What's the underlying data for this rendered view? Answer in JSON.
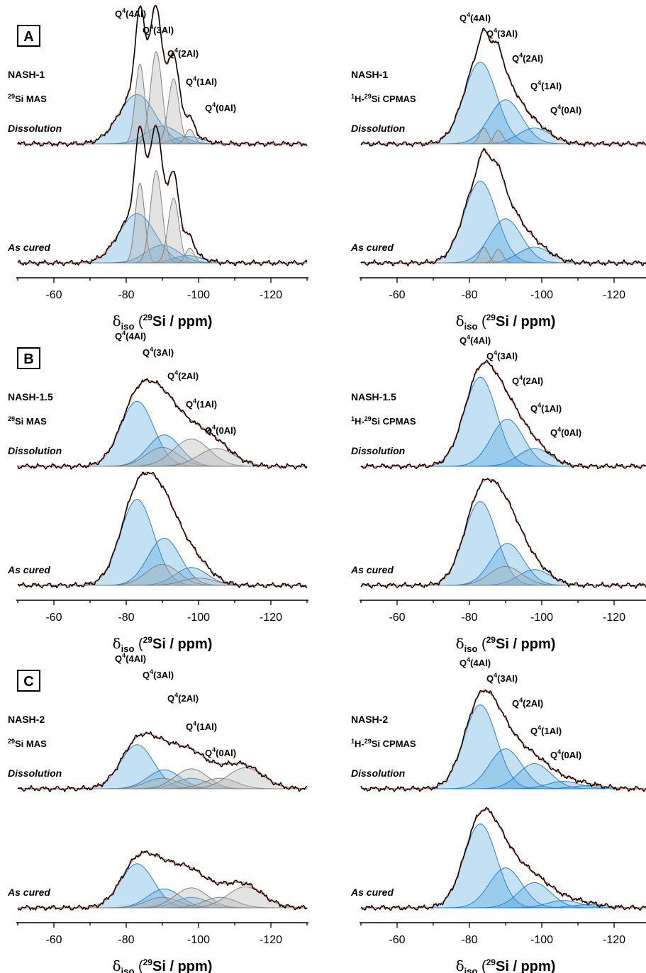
{
  "chart_data": {
    "type": "line",
    "xlabel": "δiso (29Si / ppm)",
    "xlabel_parts": {
      "delta": "δ",
      "iso": "iso",
      "open": " (",
      "mass": "29",
      "rest": "Si / ppm)"
    },
    "xlim": [
      -50,
      -130
    ],
    "xticks": [
      -60,
      -80,
      -100,
      -120
    ],
    "xtick_labels": [
      "-60",
      "-80",
      "-100",
      "-120"
    ],
    "peak_labels": [
      "Q4(4Al)",
      "Q4(3Al)",
      "Q4(2Al)",
      "Q4(1Al)",
      "Q4(0Al)"
    ],
    "colors": {
      "experimental": "#000000",
      "fit": "#f07a62",
      "component_blue": "#3d9ad9",
      "component_gray": "#b6b6b6"
    },
    "panels": [
      {
        "label": "A",
        "sample": "NASH-1",
        "columns": [
          {
            "method": "29Si MAS",
            "method_parts": {
              "mass": "29",
              "text": "Si MAS"
            },
            "spectra": [
              {
                "condition": "Dissolution",
                "components": [
                  {
                    "center": -83,
                    "height": 0.47,
                    "width": 5.0,
                    "kind": "blue"
                  },
                  {
                    "center": -90,
                    "height": 0.17,
                    "width": 4.5,
                    "kind": "blue"
                  },
                  {
                    "center": -97,
                    "height": 0.07,
                    "width": 4.0,
                    "kind": "blue"
                  },
                  {
                    "center": -83.8,
                    "height": 0.76,
                    "width": 1.3,
                    "kind": "gray"
                  },
                  {
                    "center": -88.3,
                    "height": 0.88,
                    "width": 1.6,
                    "kind": "gray"
                  },
                  {
                    "center": -93.1,
                    "height": 0.62,
                    "width": 1.5,
                    "kind": "gray"
                  },
                  {
                    "center": -97.6,
                    "height": 0.14,
                    "width": 1.2,
                    "kind": "gray"
                  }
                ]
              },
              {
                "condition": "As cured",
                "components": [
                  {
                    "center": -83,
                    "height": 0.47,
                    "width": 5.0,
                    "kind": "blue"
                  },
                  {
                    "center": -90,
                    "height": 0.17,
                    "width": 4.5,
                    "kind": "blue"
                  },
                  {
                    "center": -97,
                    "height": 0.07,
                    "width": 4.0,
                    "kind": "blue"
                  },
                  {
                    "center": -83.8,
                    "height": 0.76,
                    "width": 1.3,
                    "kind": "gray"
                  },
                  {
                    "center": -88.3,
                    "height": 0.88,
                    "width": 1.6,
                    "kind": "gray"
                  },
                  {
                    "center": -93.1,
                    "height": 0.62,
                    "width": 1.5,
                    "kind": "gray"
                  },
                  {
                    "center": -97.6,
                    "height": 0.14,
                    "width": 1.2,
                    "kind": "gray"
                  }
                ]
              }
            ]
          },
          {
            "method": "1H-29Si CPMAS",
            "method_parts": {
              "mass1": "1",
              "mid": "H-",
              "mass2": "29",
              "text": "Si CPMAS"
            },
            "spectra": [
              {
                "condition": "Dissolution",
                "components": [
                  {
                    "center": -83,
                    "height": 0.78,
                    "width": 4.5,
                    "kind": "blue"
                  },
                  {
                    "center": -90,
                    "height": 0.42,
                    "width": 4.5,
                    "kind": "blue"
                  },
                  {
                    "center": -98,
                    "height": 0.15,
                    "width": 4.5,
                    "kind": "blue"
                  },
                  {
                    "center": -84,
                    "height": 0.15,
                    "width": 1.2,
                    "kind": "gray"
                  },
                  {
                    "center": -88,
                    "height": 0.13,
                    "width": 1.2,
                    "kind": "gray"
                  }
                ]
              },
              {
                "condition": "As cured",
                "components": [
                  {
                    "center": -83,
                    "height": 0.78,
                    "width": 4.5,
                    "kind": "blue"
                  },
                  {
                    "center": -90,
                    "height": 0.42,
                    "width": 4.5,
                    "kind": "blue"
                  },
                  {
                    "center": -98,
                    "height": 0.15,
                    "width": 4.5,
                    "kind": "blue"
                  },
                  {
                    "center": -84,
                    "height": 0.15,
                    "width": 1.2,
                    "kind": "gray"
                  },
                  {
                    "center": -88,
                    "height": 0.13,
                    "width": 1.2,
                    "kind": "gray"
                  }
                ]
              }
            ]
          }
        ]
      },
      {
        "label": "B",
        "sample": "NASH-1.5",
        "columns": [
          {
            "method": "29Si MAS",
            "method_parts": {
              "mass": "29",
              "text": "Si MAS"
            },
            "spectra": [
              {
                "condition": "Dissolution",
                "components": [
                  {
                    "center": -83,
                    "height": 0.62,
                    "width": 4.6,
                    "kind": "blue"
                  },
                  {
                    "center": -90.5,
                    "height": 0.3,
                    "width": 4.5,
                    "kind": "blue"
                  },
                  {
                    "center": -90,
                    "height": 0.18,
                    "width": 4.5,
                    "kind": "gray"
                  },
                  {
                    "center": -98,
                    "height": 0.26,
                    "width": 5.0,
                    "kind": "gray"
                  },
                  {
                    "center": -105,
                    "height": 0.17,
                    "width": 5.0,
                    "kind": "gray"
                  }
                ]
              },
              {
                "condition": "As cured",
                "components": [
                  {
                    "center": -83,
                    "height": 0.82,
                    "width": 4.6,
                    "kind": "blue"
                  },
                  {
                    "center": -90.5,
                    "height": 0.45,
                    "width": 4.5,
                    "kind": "blue"
                  },
                  {
                    "center": -98,
                    "height": 0.17,
                    "width": 4.5,
                    "kind": "blue"
                  },
                  {
                    "center": -90,
                    "height": 0.2,
                    "width": 4.5,
                    "kind": "gray"
                  },
                  {
                    "center": -100,
                    "height": 0.07,
                    "width": 4.5,
                    "kind": "gray"
                  }
                ]
              }
            ]
          },
          {
            "method": "1H-29Si CPMAS",
            "method_parts": {
              "mass1": "1",
              "mid": "H-",
              "mass2": "29",
              "text": "Si CPMAS"
            },
            "spectra": [
              {
                "condition": "Dissolution",
                "components": [
                  {
                    "center": -83,
                    "height": 0.85,
                    "width": 4.5,
                    "kind": "blue"
                  },
                  {
                    "center": -90.5,
                    "height": 0.45,
                    "width": 4.5,
                    "kind": "blue"
                  },
                  {
                    "center": -98,
                    "height": 0.17,
                    "width": 4.5,
                    "kind": "blue"
                  }
                ]
              },
              {
                "condition": "As cured",
                "components": [
                  {
                    "center": -83,
                    "height": 0.8,
                    "width": 4.5,
                    "kind": "blue"
                  },
                  {
                    "center": -90.5,
                    "height": 0.4,
                    "width": 4.5,
                    "kind": "blue"
                  },
                  {
                    "center": -98,
                    "height": 0.15,
                    "width": 4.5,
                    "kind": "blue"
                  },
                  {
                    "center": -90,
                    "height": 0.18,
                    "width": 4.5,
                    "kind": "gray"
                  }
                ]
              }
            ]
          }
        ]
      },
      {
        "label": "C",
        "sample": "NASH-2",
        "columns": [
          {
            "method": "29Si MAS",
            "method_parts": {
              "mass": "29",
              "text": "Si MAS"
            },
            "spectra": [
              {
                "condition": "Dissolution",
                "components": [
                  {
                    "center": -83,
                    "height": 0.42,
                    "width": 4.6,
                    "kind": "blue"
                  },
                  {
                    "center": -90.5,
                    "height": 0.18,
                    "width": 4.5,
                    "kind": "blue"
                  },
                  {
                    "center": -98,
                    "height": 0.1,
                    "width": 4.5,
                    "kind": "blue"
                  },
                  {
                    "center": -90,
                    "height": 0.1,
                    "width": 4.5,
                    "kind": "gray"
                  },
                  {
                    "center": -98,
                    "height": 0.19,
                    "width": 4.5,
                    "kind": "gray"
                  },
                  {
                    "center": -106,
                    "height": 0.1,
                    "width": 4.5,
                    "kind": "gray"
                  },
                  {
                    "center": -113,
                    "height": 0.2,
                    "width": 5.0,
                    "kind": "gray"
                  }
                ]
              },
              {
                "condition": "As cured",
                "components": [
                  {
                    "center": -83,
                    "height": 0.42,
                    "width": 4.6,
                    "kind": "blue"
                  },
                  {
                    "center": -90.5,
                    "height": 0.18,
                    "width": 4.5,
                    "kind": "blue"
                  },
                  {
                    "center": -98,
                    "height": 0.1,
                    "width": 4.5,
                    "kind": "blue"
                  },
                  {
                    "center": -90,
                    "height": 0.1,
                    "width": 4.5,
                    "kind": "gray"
                  },
                  {
                    "center": -98,
                    "height": 0.19,
                    "width": 4.5,
                    "kind": "gray"
                  },
                  {
                    "center": -106,
                    "height": 0.1,
                    "width": 4.5,
                    "kind": "gray"
                  },
                  {
                    "center": -113,
                    "height": 0.2,
                    "width": 5.0,
                    "kind": "gray"
                  }
                ]
              }
            ]
          },
          {
            "method": "1H-29Si CPMAS",
            "method_parts": {
              "mass1": "1",
              "mid": "H-",
              "mass2": "29",
              "text": "Si CPMAS"
            },
            "spectra": [
              {
                "condition": "Dissolution",
                "components": [
                  {
                    "center": -83,
                    "height": 0.8,
                    "width": 4.5,
                    "kind": "blue"
                  },
                  {
                    "center": -90,
                    "height": 0.38,
                    "width": 4.5,
                    "kind": "blue"
                  },
                  {
                    "center": -98,
                    "height": 0.24,
                    "width": 4.5,
                    "kind": "blue"
                  },
                  {
                    "center": -106,
                    "height": 0.07,
                    "width": 4.5,
                    "kind": "blue"
                  },
                  {
                    "center": -113,
                    "height": 0.03,
                    "width": 4.5,
                    "kind": "blue"
                  }
                ]
              },
              {
                "condition": "As cured",
                "components": [
                  {
                    "center": -83,
                    "height": 0.8,
                    "width": 4.5,
                    "kind": "blue"
                  },
                  {
                    "center": -90,
                    "height": 0.38,
                    "width": 4.5,
                    "kind": "blue"
                  },
                  {
                    "center": -98,
                    "height": 0.24,
                    "width": 4.5,
                    "kind": "blue"
                  },
                  {
                    "center": -106,
                    "height": 0.07,
                    "width": 4.5,
                    "kind": "blue"
                  },
                  {
                    "center": -113,
                    "height": 0.03,
                    "width": 4.5,
                    "kind": "blue"
                  }
                ]
              }
            ]
          }
        ]
      }
    ]
  }
}
